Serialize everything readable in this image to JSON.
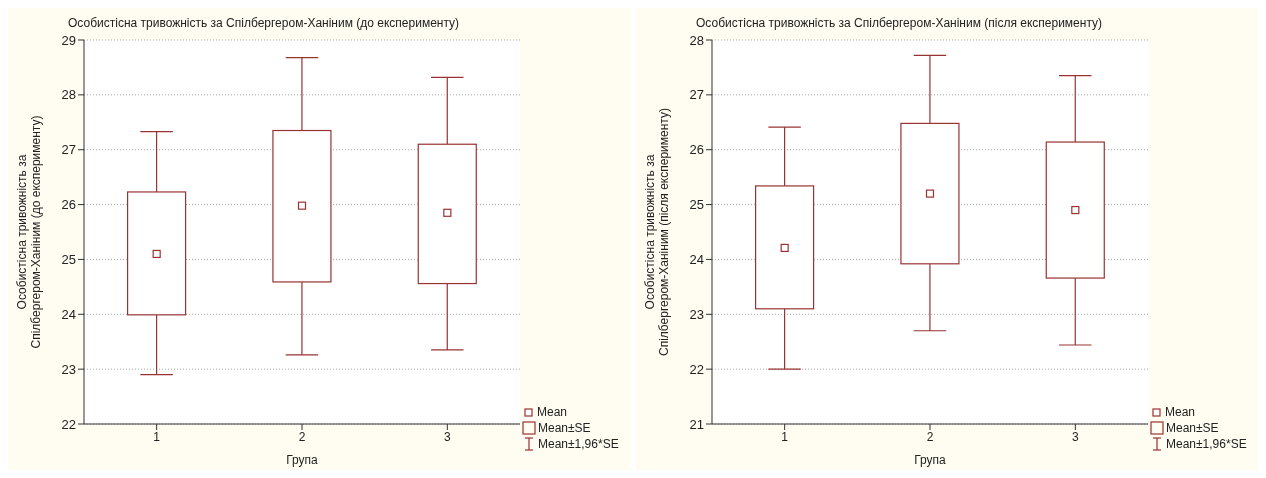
{
  "chart_data": [
    {
      "type": "box",
      "title": "Особистісна тривожність за Спілбергером-Ханіним (до експерименту)",
      "xlabel": "Група",
      "ylabel": "Особистісна тривожність за Спілбергером-Ханіним (до експерименту)",
      "categories": [
        "1",
        "2",
        "3"
      ],
      "color": "#993333",
      "boxes": [
        {
          "low": 22.9,
          "q1": 23.99,
          "mean": 25.1,
          "q3": 26.23,
          "high": 27.33
        },
        {
          "low": 23.26,
          "q1": 24.59,
          "mean": 25.98,
          "q3": 27.35,
          "high": 28.68
        },
        {
          "low": 23.35,
          "q1": 24.56,
          "mean": 25.85,
          "q3": 27.1,
          "high": 28.32
        }
      ],
      "ylim": [
        22,
        29
      ],
      "yticks": [
        22,
        23,
        24,
        25,
        26,
        27,
        28,
        29
      ],
      "grid": "y",
      "marker": "square",
      "annotations": [
        "Mean",
        "Mean±SE",
        "Mean±1,96*SE"
      ]
    },
    {
      "type": "box",
      "title": "Особистісна тривожність за Спілбергером-Ханіним (після експерименту)",
      "xlabel": "Група",
      "ylabel": "Особистісна тривожність за Спілбергером-Ханіним (після експерименту)",
      "categories": [
        "1",
        "2",
        "3"
      ],
      "color": "#993333",
      "boxes": [
        {
          "low": 22.0,
          "q1": 23.1,
          "mean": 24.21,
          "q3": 25.34,
          "high": 26.41
        },
        {
          "low": 22.7,
          "q1": 23.92,
          "mean": 25.2,
          "q3": 26.48,
          "high": 27.72
        },
        {
          "low": 22.44,
          "q1": 23.66,
          "mean": 24.9,
          "q3": 26.14,
          "high": 27.35
        }
      ],
      "ylim": [
        21,
        28
      ],
      "yticks": [
        21,
        22,
        23,
        24,
        25,
        26,
        27,
        28
      ],
      "grid": "y",
      "marker": "square",
      "annotations": [
        "Mean",
        "Mean±SE",
        "Mean±1,96*SE"
      ]
    }
  ]
}
